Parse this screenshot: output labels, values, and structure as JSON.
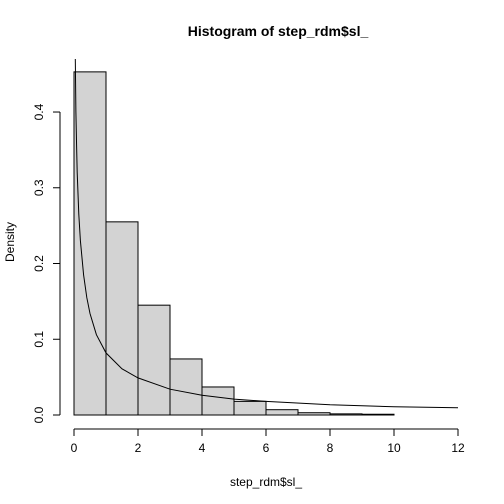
{
  "chart_data": {
    "type": "bar",
    "title": "Histogram of step_rdm$sl_",
    "xlabel": "step_rdm$sl_",
    "ylabel": "Density",
    "bins": [
      {
        "x0": 0,
        "x1": 1,
        "density": 0.453
      },
      {
        "x0": 1,
        "x1": 2,
        "density": 0.255
      },
      {
        "x0": 2,
        "x1": 3,
        "density": 0.145
      },
      {
        "x0": 3,
        "x1": 4,
        "density": 0.074
      },
      {
        "x0": 4,
        "x1": 5,
        "density": 0.037
      },
      {
        "x0": 5,
        "x1": 6,
        "density": 0.018
      },
      {
        "x0": 6,
        "x1": 7,
        "density": 0.007
      },
      {
        "x0": 7,
        "x1": 8,
        "density": 0.003
      },
      {
        "x0": 8,
        "x1": 9,
        "density": 0.0015
      },
      {
        "x0": 9,
        "x1": 10,
        "density": 0.001
      }
    ],
    "xlim": [
      0,
      12
    ],
    "ylim": [
      0,
      0.47
    ],
    "xticks": [
      0,
      2,
      4,
      6,
      8,
      10,
      12
    ],
    "yticks": [
      0.0,
      0.1,
      0.2,
      0.3,
      0.4
    ],
    "ytick_labels": [
      "0.0",
      "0.1",
      "0.2",
      "0.3",
      "0.4"
    ],
    "overlay_curve": {
      "type": "line",
      "x": [
        0.04,
        0.06,
        0.08,
        0.1,
        0.15,
        0.2,
        0.3,
        0.4,
        0.5,
        0.7,
        1.0,
        1.5,
        2.0,
        3.0,
        4.0,
        5.0,
        6.0,
        8.0,
        10.0,
        12.0
      ],
      "y": [
        0.47,
        0.4,
        0.355,
        0.32,
        0.265,
        0.23,
        0.185,
        0.155,
        0.134,
        0.106,
        0.082,
        0.061,
        0.049,
        0.034,
        0.026,
        0.021,
        0.018,
        0.0135,
        0.011,
        0.0095
      ]
    },
    "colors": {
      "bar_fill": "#d3d3d3",
      "bar_edge": "#000000",
      "curve": "#000000"
    },
    "grid": false,
    "legend": "none"
  }
}
